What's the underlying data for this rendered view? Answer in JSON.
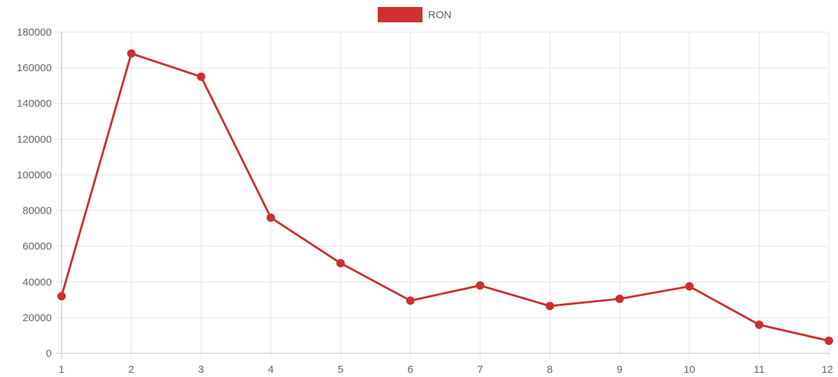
{
  "chart_data": {
    "type": "line",
    "legend_position": "top-center",
    "grid": true,
    "x": [
      "1",
      "2",
      "3",
      "4",
      "5",
      "6",
      "7",
      "8",
      "9",
      "10",
      "11",
      "12"
    ],
    "ylim": [
      0,
      180000
    ],
    "y_ticks": [
      "0",
      "20000",
      "40000",
      "60000",
      "80000",
      "100000",
      "120000",
      "140000",
      "160000",
      "180000"
    ],
    "series": [
      {
        "name": "RON",
        "color": "#cc2f2f",
        "values": [
          32000,
          168000,
          155000,
          76000,
          50500,
          29500,
          38000,
          26500,
          30500,
          37500,
          16000,
          7000
        ]
      }
    ]
  }
}
